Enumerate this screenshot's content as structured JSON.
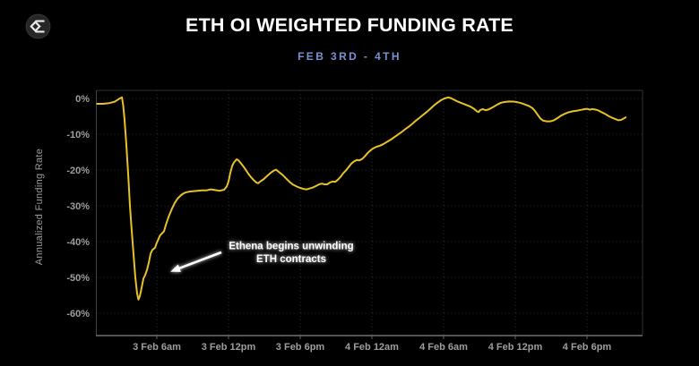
{
  "header": {
    "title": "ETH OI WEIGHTED FUNDING RATE",
    "subtitle": "FEB 3RD - 4TH",
    "subtitle_color": "#7b91d6",
    "logo_icon": "sigma-diamond-logo"
  },
  "chart_data": {
    "type": "line",
    "title": "ETH OI WEIGHTED FUNDING RATE",
    "subtitle": "FEB 3RD - 4TH",
    "xlabel": "",
    "ylabel": "Annualized Funding Rate",
    "x_unit": "hours since 3 Feb 12am",
    "xlim": [
      0.95,
      46.65
    ],
    "ylim": [
      -66.25,
      2.25
    ],
    "grid": "dotted, both axes",
    "legend": "none",
    "line_color": "#e8c126",
    "axis_label_color": "#9e9e9e",
    "gridline_color": "#2a2a2a",
    "y_ticks": [
      {
        "v": 0,
        "label": "0%"
      },
      {
        "v": -10,
        "label": "-10%"
      },
      {
        "v": -20,
        "label": "-20%"
      },
      {
        "v": -30,
        "label": "-30%"
      },
      {
        "v": -40,
        "label": "-40%"
      },
      {
        "v": -50,
        "label": "-50%"
      },
      {
        "v": -60,
        "label": "-60%"
      }
    ],
    "x_ticks": [
      {
        "t": 6,
        "label": "3 Feb 6am"
      },
      {
        "t": 12,
        "label": "3 Feb 12pm"
      },
      {
        "t": 18,
        "label": "3 Feb 6pm"
      },
      {
        "t": 24,
        "label": "4 Feb 12am"
      },
      {
        "t": 30,
        "label": "4 Feb 6am"
      },
      {
        "t": 36,
        "label": "4 Feb 12pm"
      },
      {
        "t": 42,
        "label": "4 Feb 6pm"
      }
    ],
    "series": [
      {
        "name": "ETH OI weighted funding rate (annualized %)",
        "points": [
          [
            0.98,
            -1.5
          ],
          [
            1.5,
            -1.5
          ],
          [
            2.03,
            -1.3
          ],
          [
            2.48,
            -0.9
          ],
          [
            2.85,
            -0.1
          ],
          [
            3.08,
            0.3
          ],
          [
            3.19,
            -2
          ],
          [
            3.3,
            -6
          ],
          [
            3.45,
            -13
          ],
          [
            3.6,
            -21
          ],
          [
            3.75,
            -30
          ],
          [
            3.9,
            -37
          ],
          [
            4.05,
            -43.5
          ],
          [
            4.2,
            -50
          ],
          [
            4.35,
            -54.5
          ],
          [
            4.46,
            -56.2
          ],
          [
            4.58,
            -55.2
          ],
          [
            4.73,
            -52.8
          ],
          [
            4.88,
            -50.3
          ],
          [
            5.03,
            -49.3
          ],
          [
            5.18,
            -47.8
          ],
          [
            5.33,
            -45.8
          ],
          [
            5.48,
            -43.3
          ],
          [
            5.63,
            -42.3
          ],
          [
            5.85,
            -41.7
          ],
          [
            6.0,
            -40.3
          ],
          [
            6.15,
            -39.2
          ],
          [
            6.26,
            -38.3
          ],
          [
            6.38,
            -37.9
          ],
          [
            6.6,
            -37.1
          ],
          [
            6.75,
            -35.4
          ],
          [
            6.98,
            -33.1
          ],
          [
            7.28,
            -30.7
          ],
          [
            7.5,
            -29.2
          ],
          [
            7.73,
            -28
          ],
          [
            8.03,
            -27
          ],
          [
            8.25,
            -26.5
          ],
          [
            8.48,
            -26.2
          ],
          [
            8.78,
            -26
          ],
          [
            9.08,
            -25.9
          ],
          [
            9.38,
            -25.8
          ],
          [
            9.75,
            -25.7
          ],
          [
            10.13,
            -25.7
          ],
          [
            10.5,
            -25.4
          ],
          [
            10.88,
            -25.6
          ],
          [
            11.25,
            -25.8
          ],
          [
            11.63,
            -25.5
          ],
          [
            11.85,
            -24.6
          ],
          [
            12.0,
            -23.2
          ],
          [
            12.15,
            -20.8
          ],
          [
            12.3,
            -18.9
          ],
          [
            12.45,
            -17.9
          ],
          [
            12.68,
            -17
          ],
          [
            12.83,
            -17.3
          ],
          [
            12.98,
            -17.9
          ],
          [
            13.2,
            -18.8
          ],
          [
            13.43,
            -19.9
          ],
          [
            13.65,
            -21
          ],
          [
            13.88,
            -22
          ],
          [
            14.1,
            -22.8
          ],
          [
            14.33,
            -23.5
          ],
          [
            14.48,
            -23.7
          ],
          [
            14.7,
            -23.1
          ],
          [
            14.93,
            -22.6
          ],
          [
            15.15,
            -21.9
          ],
          [
            15.38,
            -21.2
          ],
          [
            15.6,
            -20.6
          ],
          [
            15.83,
            -20.1
          ],
          [
            15.98,
            -19.9
          ],
          [
            16.2,
            -20.5
          ],
          [
            16.5,
            -21.3
          ],
          [
            16.8,
            -22.3
          ],
          [
            17.1,
            -23.3
          ],
          [
            17.4,
            -24.1
          ],
          [
            17.7,
            -24.6
          ],
          [
            18.0,
            -25
          ],
          [
            18.3,
            -25.3
          ],
          [
            18.53,
            -25.4
          ],
          [
            18.75,
            -25.2
          ],
          [
            19.05,
            -24.9
          ],
          [
            19.35,
            -24.4
          ],
          [
            19.58,
            -24
          ],
          [
            19.8,
            -23.8
          ],
          [
            20.03,
            -24
          ],
          [
            20.25,
            -24
          ],
          [
            20.48,
            -23.5
          ],
          [
            20.7,
            -23.2
          ],
          [
            20.93,
            -23.3
          ],
          [
            21.15,
            -22.7
          ],
          [
            21.38,
            -21.9
          ],
          [
            21.6,
            -20.9
          ],
          [
            21.83,
            -20.1
          ],
          [
            22.05,
            -19.2
          ],
          [
            22.28,
            -18.2
          ],
          [
            22.5,
            -17.6
          ],
          [
            22.73,
            -17.2
          ],
          [
            22.95,
            -17.3
          ],
          [
            23.18,
            -16.9
          ],
          [
            23.4,
            -16.2
          ],
          [
            23.63,
            -15.3
          ],
          [
            23.85,
            -14.6
          ],
          [
            24.08,
            -14
          ],
          [
            24.38,
            -13.5
          ],
          [
            24.68,
            -13.2
          ],
          [
            24.98,
            -12.7
          ],
          [
            25.28,
            -12.1
          ],
          [
            25.58,
            -11.5
          ],
          [
            25.88,
            -10.8
          ],
          [
            26.18,
            -10.1
          ],
          [
            26.48,
            -9.4
          ],
          [
            26.78,
            -8.6
          ],
          [
            27.08,
            -7.9
          ],
          [
            27.38,
            -7.1
          ],
          [
            27.68,
            -6.2
          ],
          [
            27.98,
            -5.4
          ],
          [
            28.28,
            -4.6
          ],
          [
            28.58,
            -3.8
          ],
          [
            28.88,
            -2.9
          ],
          [
            29.18,
            -2
          ],
          [
            29.48,
            -1.2
          ],
          [
            29.78,
            -0.5
          ],
          [
            30.08,
            0
          ],
          [
            30.38,
            0.3
          ],
          [
            30.6,
            0.1
          ],
          [
            30.9,
            -0.4
          ],
          [
            31.2,
            -0.9
          ],
          [
            31.5,
            -1.3
          ],
          [
            31.88,
            -1.8
          ],
          [
            32.25,
            -2.3
          ],
          [
            32.55,
            -2.9
          ],
          [
            32.78,
            -3.6
          ],
          [
            32.93,
            -3.8
          ],
          [
            33.08,
            -3.2
          ],
          [
            33.3,
            -3
          ],
          [
            33.53,
            -3.3
          ],
          [
            33.75,
            -3.1
          ],
          [
            33.98,
            -2.7
          ],
          [
            34.2,
            -2.3
          ],
          [
            34.5,
            -1.7
          ],
          [
            34.8,
            -1.2
          ],
          [
            35.1,
            -1
          ],
          [
            35.48,
            -0.85
          ],
          [
            35.93,
            -0.9
          ],
          [
            36.38,
            -1.2
          ],
          [
            36.75,
            -1.6
          ],
          [
            37.13,
            -2.1
          ],
          [
            37.43,
            -2.7
          ],
          [
            37.65,
            -3.5
          ],
          [
            37.88,
            -4.6
          ],
          [
            38.1,
            -5.6
          ],
          [
            38.33,
            -6.2
          ],
          [
            38.63,
            -6.4
          ],
          [
            38.93,
            -6.4
          ],
          [
            39.23,
            -6.1
          ],
          [
            39.53,
            -5.5
          ],
          [
            39.83,
            -4.8
          ],
          [
            40.13,
            -4.3
          ],
          [
            40.43,
            -3.9
          ],
          [
            40.8,
            -3.6
          ],
          [
            41.18,
            -3.4
          ],
          [
            41.48,
            -3.2
          ],
          [
            41.78,
            -3
          ],
          [
            42.0,
            -2.9
          ],
          [
            42.23,
            -3.15
          ],
          [
            42.45,
            -2.95
          ],
          [
            42.75,
            -3.15
          ],
          [
            42.98,
            -3.4
          ],
          [
            43.2,
            -3.8
          ],
          [
            43.5,
            -4.3
          ],
          [
            43.8,
            -4.9
          ],
          [
            44.1,
            -5.4
          ],
          [
            44.4,
            -5.8
          ],
          [
            44.63,
            -6.1
          ],
          [
            44.85,
            -6
          ],
          [
            45.08,
            -5.6
          ],
          [
            45.23,
            -5.3
          ]
        ]
      }
    ],
    "annotation": {
      "line1": "Ethena begins unwinding",
      "line2": "ETH contracts",
      "text_t": 17.25,
      "text_v1": -42.1,
      "text_v2": -45.8,
      "arrow_from_t": 11.4,
      "arrow_from_v": -43.0,
      "arrow_to_t": 7.13,
      "arrow_to_v": -48.4
    }
  }
}
